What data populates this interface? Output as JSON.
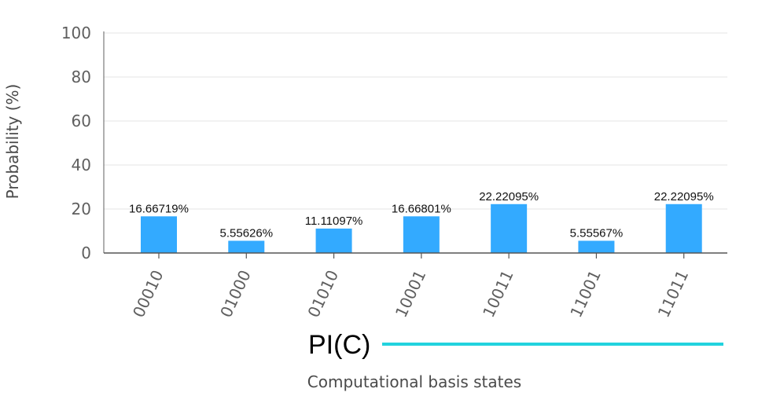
{
  "chart_data": {
    "type": "bar",
    "categories": [
      "00010",
      "01000",
      "01010",
      "10001",
      "10011",
      "11001",
      "11011"
    ],
    "values": [
      16.66719,
      5.55626,
      11.11097,
      16.66801,
      22.22095,
      5.55567,
      22.22095
    ],
    "data_labels": [
      "16.66719%",
      "5.55626%",
      "11.11097%",
      "16.66801%",
      "22.22095%",
      "5.55567%",
      "22.22095%"
    ],
    "xlabel": "Computational basis states",
    "ylabel": "Probability (%)",
    "ylim": [
      0,
      100
    ],
    "yticks": [
      "0",
      "20",
      "40",
      "60",
      "80",
      "100"
    ],
    "grid": true,
    "bar_color": "#33aaff",
    "legend": {
      "label": "PI(C)",
      "color": "#22d3de",
      "placement": "bottom-center"
    }
  }
}
